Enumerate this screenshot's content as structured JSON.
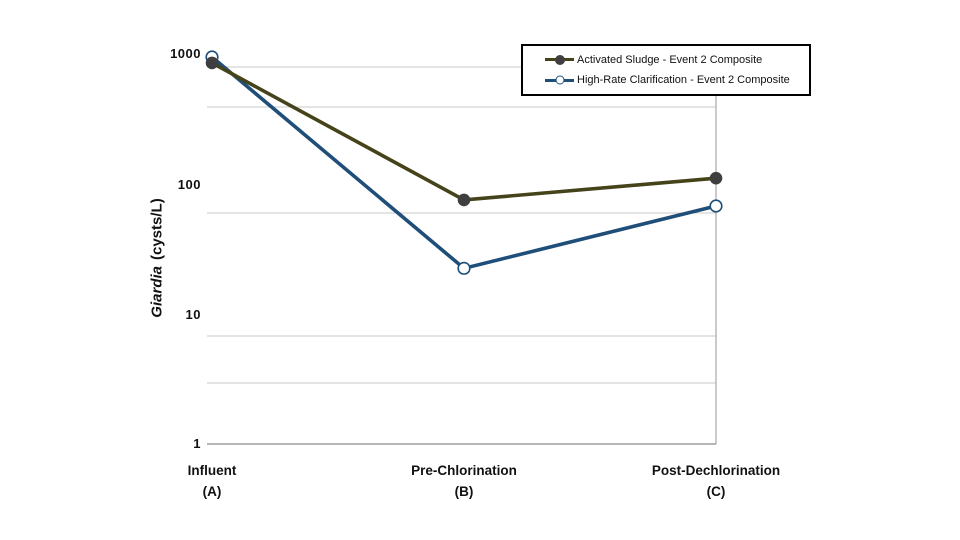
{
  "chart_data": {
    "type": "line",
    "title": "",
    "y_scale": "log",
    "ylabel": "Giardia (cysts/L)",
    "ylabel_italic_part": "Giardia",
    "ylabel_unit_part": "(cysts/L)",
    "y_ticks": [
      "1000",
      "100",
      "10",
      "1"
    ],
    "ylim": [
      1,
      1000
    ],
    "grid": "horizontal",
    "grid_color": "#c9c9c9",
    "axis_color": "#9e9e9e",
    "plot_border_color": "#a8a8a8",
    "legend_position": "top-right",
    "categories": [
      {
        "name": "Influent",
        "code": "(A)"
      },
      {
        "name": "Pre-Chlorination",
        "code": "(B)"
      },
      {
        "name": "Post-Dechlorination",
        "code": "(C)"
      }
    ],
    "series": [
      {
        "name": "Activated Sludge - Event 2 Composite",
        "values": [
          900,
          78,
          115
        ],
        "line_color": "#45431a",
        "marker": "filled-circle",
        "marker_color": "#3f3f3f"
      },
      {
        "name": "High-Rate Clarification - Event 2 Composite",
        "values": [
          1000,
          23,
          70
        ],
        "line_color": "#1f4e79",
        "marker": "open-circle",
        "marker_color": "#1f4e79"
      }
    ]
  }
}
